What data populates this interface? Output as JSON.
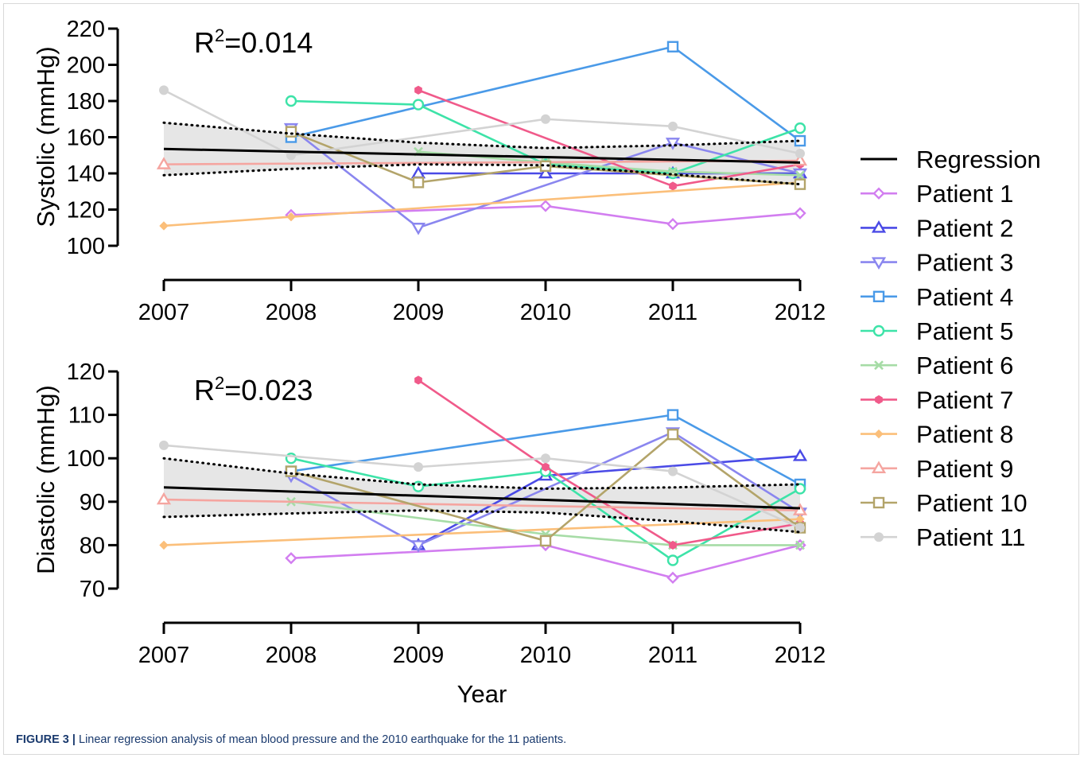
{
  "caption": {
    "label": "FIGURE 3 |",
    "text": "Linear regression analysis of mean blood pressure and the 2010 earthquake for the 11 patients."
  },
  "legend_order": [
    "Regression",
    "Patient 1",
    "Patient 2",
    "Patient 3",
    "Patient 4",
    "Patient 5",
    "Patient 6",
    "Patient 7",
    "Patient 8",
    "Patient 9",
    "Patient 10",
    "Patient 11"
  ],
  "chart_data": [
    {
      "type": "line",
      "id": "systolic",
      "title": "",
      "xlabel": "",
      "ylabel": "Systolic (mmHg)",
      "annotation": "R²=0.014",
      "xlim": [
        2007,
        2012
      ],
      "ylim": [
        100,
        220
      ],
      "x_ticks": [
        "2007",
        "2008",
        "2009",
        "2010",
        "2011",
        "2012"
      ],
      "y_ticks": [
        "100",
        "120",
        "140",
        "160",
        "180",
        "200",
        "220"
      ],
      "regression": {
        "name": "Regression",
        "color": "#000000",
        "points": [
          [
            2007,
            153.5
          ],
          [
            2012,
            146
          ]
        ]
      },
      "ci_upper": [
        [
          2007,
          168
        ],
        [
          2008,
          162
        ],
        [
          2009,
          157
        ],
        [
          2010,
          154
        ],
        [
          2011,
          155.5
        ],
        [
          2012,
          158
        ]
      ],
      "ci_lower": [
        [
          2007,
          139
        ],
        [
          2008,
          142.5
        ],
        [
          2009,
          145
        ],
        [
          2010,
          144.5
        ],
        [
          2011,
          139.5
        ],
        [
          2012,
          134
        ]
      ],
      "series": [
        {
          "name": "Patient 1",
          "color": "#d27ef0",
          "marker": "diamond",
          "points": [
            [
              2008,
              117
            ],
            [
              2010,
              122
            ],
            [
              2011,
              112
            ],
            [
              2012,
              118
            ]
          ]
        },
        {
          "name": "Patient 2",
          "color": "#4a4ae6",
          "marker": "triangle-up",
          "points": [
            [
              2009,
              140
            ],
            [
              2010,
              140
            ],
            [
              2011,
              140
            ],
            [
              2012,
              140
            ]
          ]
        },
        {
          "name": "Patient 3",
          "color": "#8a86ef",
          "marker": "triangle-down",
          "points": [
            [
              2008,
              165
            ],
            [
              2009,
              110
            ],
            [
              2011,
              157
            ],
            [
              2012,
              140
            ]
          ]
        },
        {
          "name": "Patient 4",
          "color": "#4a9ae8",
          "marker": "square",
          "points": [
            [
              2008,
              160
            ],
            [
              2011,
              210
            ],
            [
              2012,
              158
            ]
          ]
        },
        {
          "name": "Patient 5",
          "color": "#3de3a8",
          "marker": "circle",
          "points": [
            [
              2008,
              180
            ],
            [
              2009,
              178
            ],
            [
              2010,
              145
            ],
            [
              2011,
              140
            ],
            [
              2012,
              165
            ]
          ]
        },
        {
          "name": "Patient 6",
          "color": "#a6dca6",
          "marker": "x",
          "points": [
            [
              2009,
              152
            ],
            [
              2010,
              146
            ],
            [
              2011,
              141
            ],
            [
              2012,
              139
            ]
          ]
        },
        {
          "name": "Patient 7",
          "color": "#f05a8a",
          "marker": "hexagon",
          "points": [
            [
              2009,
              186
            ],
            [
              2011,
              133
            ],
            [
              2012,
              145
            ]
          ]
        },
        {
          "name": "Patient 8",
          "color": "#fbbf7a",
          "marker": "diamond-small",
          "points": [
            [
              2007,
              111
            ],
            [
              2008,
              116
            ],
            [
              2012,
              135
            ]
          ]
        },
        {
          "name": "Patient 9",
          "color": "#f5a5a0",
          "marker": "triangle-up",
          "points": [
            [
              2007,
              145
            ],
            [
              2012,
              147
            ]
          ]
        },
        {
          "name": "Patient 10",
          "color": "#b3a46a",
          "marker": "square",
          "points": [
            [
              2008,
              163
            ],
            [
              2009,
              135
            ],
            [
              2010,
              144
            ],
            [
              2012,
              134
            ]
          ]
        },
        {
          "name": "Patient 11",
          "color": "#d3d3d3",
          "marker": "circle-filled",
          "points": [
            [
              2007,
              186
            ],
            [
              2008,
              150
            ],
            [
              2010,
              170
            ],
            [
              2011,
              166
            ],
            [
              2012,
              151
            ]
          ]
        }
      ]
    },
    {
      "type": "line",
      "id": "diastolic",
      "title": "",
      "xlabel": "Year",
      "ylabel": "Diastolic (mmHg)",
      "annotation": "R²=0.023",
      "xlim": [
        2007,
        2012
      ],
      "ylim": [
        70,
        120
      ],
      "x_ticks": [
        "2007",
        "2008",
        "2009",
        "2010",
        "2011",
        "2012"
      ],
      "y_ticks": [
        "70",
        "80",
        "90",
        "100",
        "110",
        "120"
      ],
      "regression": {
        "name": "Regression",
        "color": "#000000",
        "points": [
          [
            2007,
            93.3
          ],
          [
            2012,
            88.5
          ]
        ]
      },
      "ci_upper": [
        [
          2007,
          100
        ],
        [
          2008,
          96.5
        ],
        [
          2009,
          94
        ],
        [
          2010,
          93
        ],
        [
          2011,
          93.3
        ],
        [
          2012,
          94
        ]
      ],
      "ci_lower": [
        [
          2007,
          86.5
        ],
        [
          2008,
          87.3
        ],
        [
          2009,
          88
        ],
        [
          2010,
          87.5
        ],
        [
          2011,
          85.5
        ],
        [
          2012,
          83
        ]
      ],
      "series": [
        {
          "name": "Patient 1",
          "color": "#d27ef0",
          "marker": "diamond",
          "points": [
            [
              2008,
              77
            ],
            [
              2010,
              80
            ],
            [
              2011,
              72.5
            ],
            [
              2012,
              80
            ]
          ]
        },
        {
          "name": "Patient 2",
          "color": "#4a4ae6",
          "marker": "triangle-up",
          "points": [
            [
              2009,
              80
            ],
            [
              2010,
              96
            ],
            [
              2012,
              100.5
            ]
          ]
        },
        {
          "name": "Patient 3",
          "color": "#8a86ef",
          "marker": "triangle-down",
          "points": [
            [
              2008,
              96
            ],
            [
              2009,
              80
            ],
            [
              2011,
              106
            ],
            [
              2012,
              87.5
            ]
          ]
        },
        {
          "name": "Patient 4",
          "color": "#4a9ae8",
          "marker": "square",
          "points": [
            [
              2008,
              97
            ],
            [
              2011,
              110
            ],
            [
              2012,
              94
            ]
          ]
        },
        {
          "name": "Patient 5",
          "color": "#3de3a8",
          "marker": "circle",
          "points": [
            [
              2008,
              100
            ],
            [
              2009,
              93.5
            ],
            [
              2010,
              97
            ],
            [
              2011,
              76.5
            ],
            [
              2012,
              93
            ]
          ]
        },
        {
          "name": "Patient 6",
          "color": "#a6dca6",
          "marker": "x",
          "points": [
            [
              2008,
              90
            ],
            [
              2010,
              82.5
            ],
            [
              2011,
              80
            ],
            [
              2012,
              80
            ]
          ]
        },
        {
          "name": "Patient 7",
          "color": "#f05a8a",
          "marker": "hexagon",
          "points": [
            [
              2009,
              118
            ],
            [
              2010,
              98
            ],
            [
              2011,
              80
            ],
            [
              2012,
              85
            ]
          ]
        },
        {
          "name": "Patient 8",
          "color": "#fbbf7a",
          "marker": "diamond-small",
          "points": [
            [
              2007,
              80
            ],
            [
              2012,
              86
            ]
          ]
        },
        {
          "name": "Patient 9",
          "color": "#f5a5a0",
          "marker": "triangle-up",
          "points": [
            [
              2007,
              90.5
            ],
            [
              2012,
              88
            ]
          ]
        },
        {
          "name": "Patient 10",
          "color": "#b3a46a",
          "marker": "square",
          "points": [
            [
              2008,
              97
            ],
            [
              2010,
              81
            ],
            [
              2011,
              105.5
            ],
            [
              2012,
              84
            ]
          ]
        },
        {
          "name": "Patient 11",
          "color": "#d3d3d3",
          "marker": "circle-filled",
          "points": [
            [
              2007,
              103
            ],
            [
              2009,
              98
            ],
            [
              2010,
              100
            ],
            [
              2011,
              97
            ],
            [
              2012,
              84
            ]
          ]
        }
      ]
    }
  ]
}
